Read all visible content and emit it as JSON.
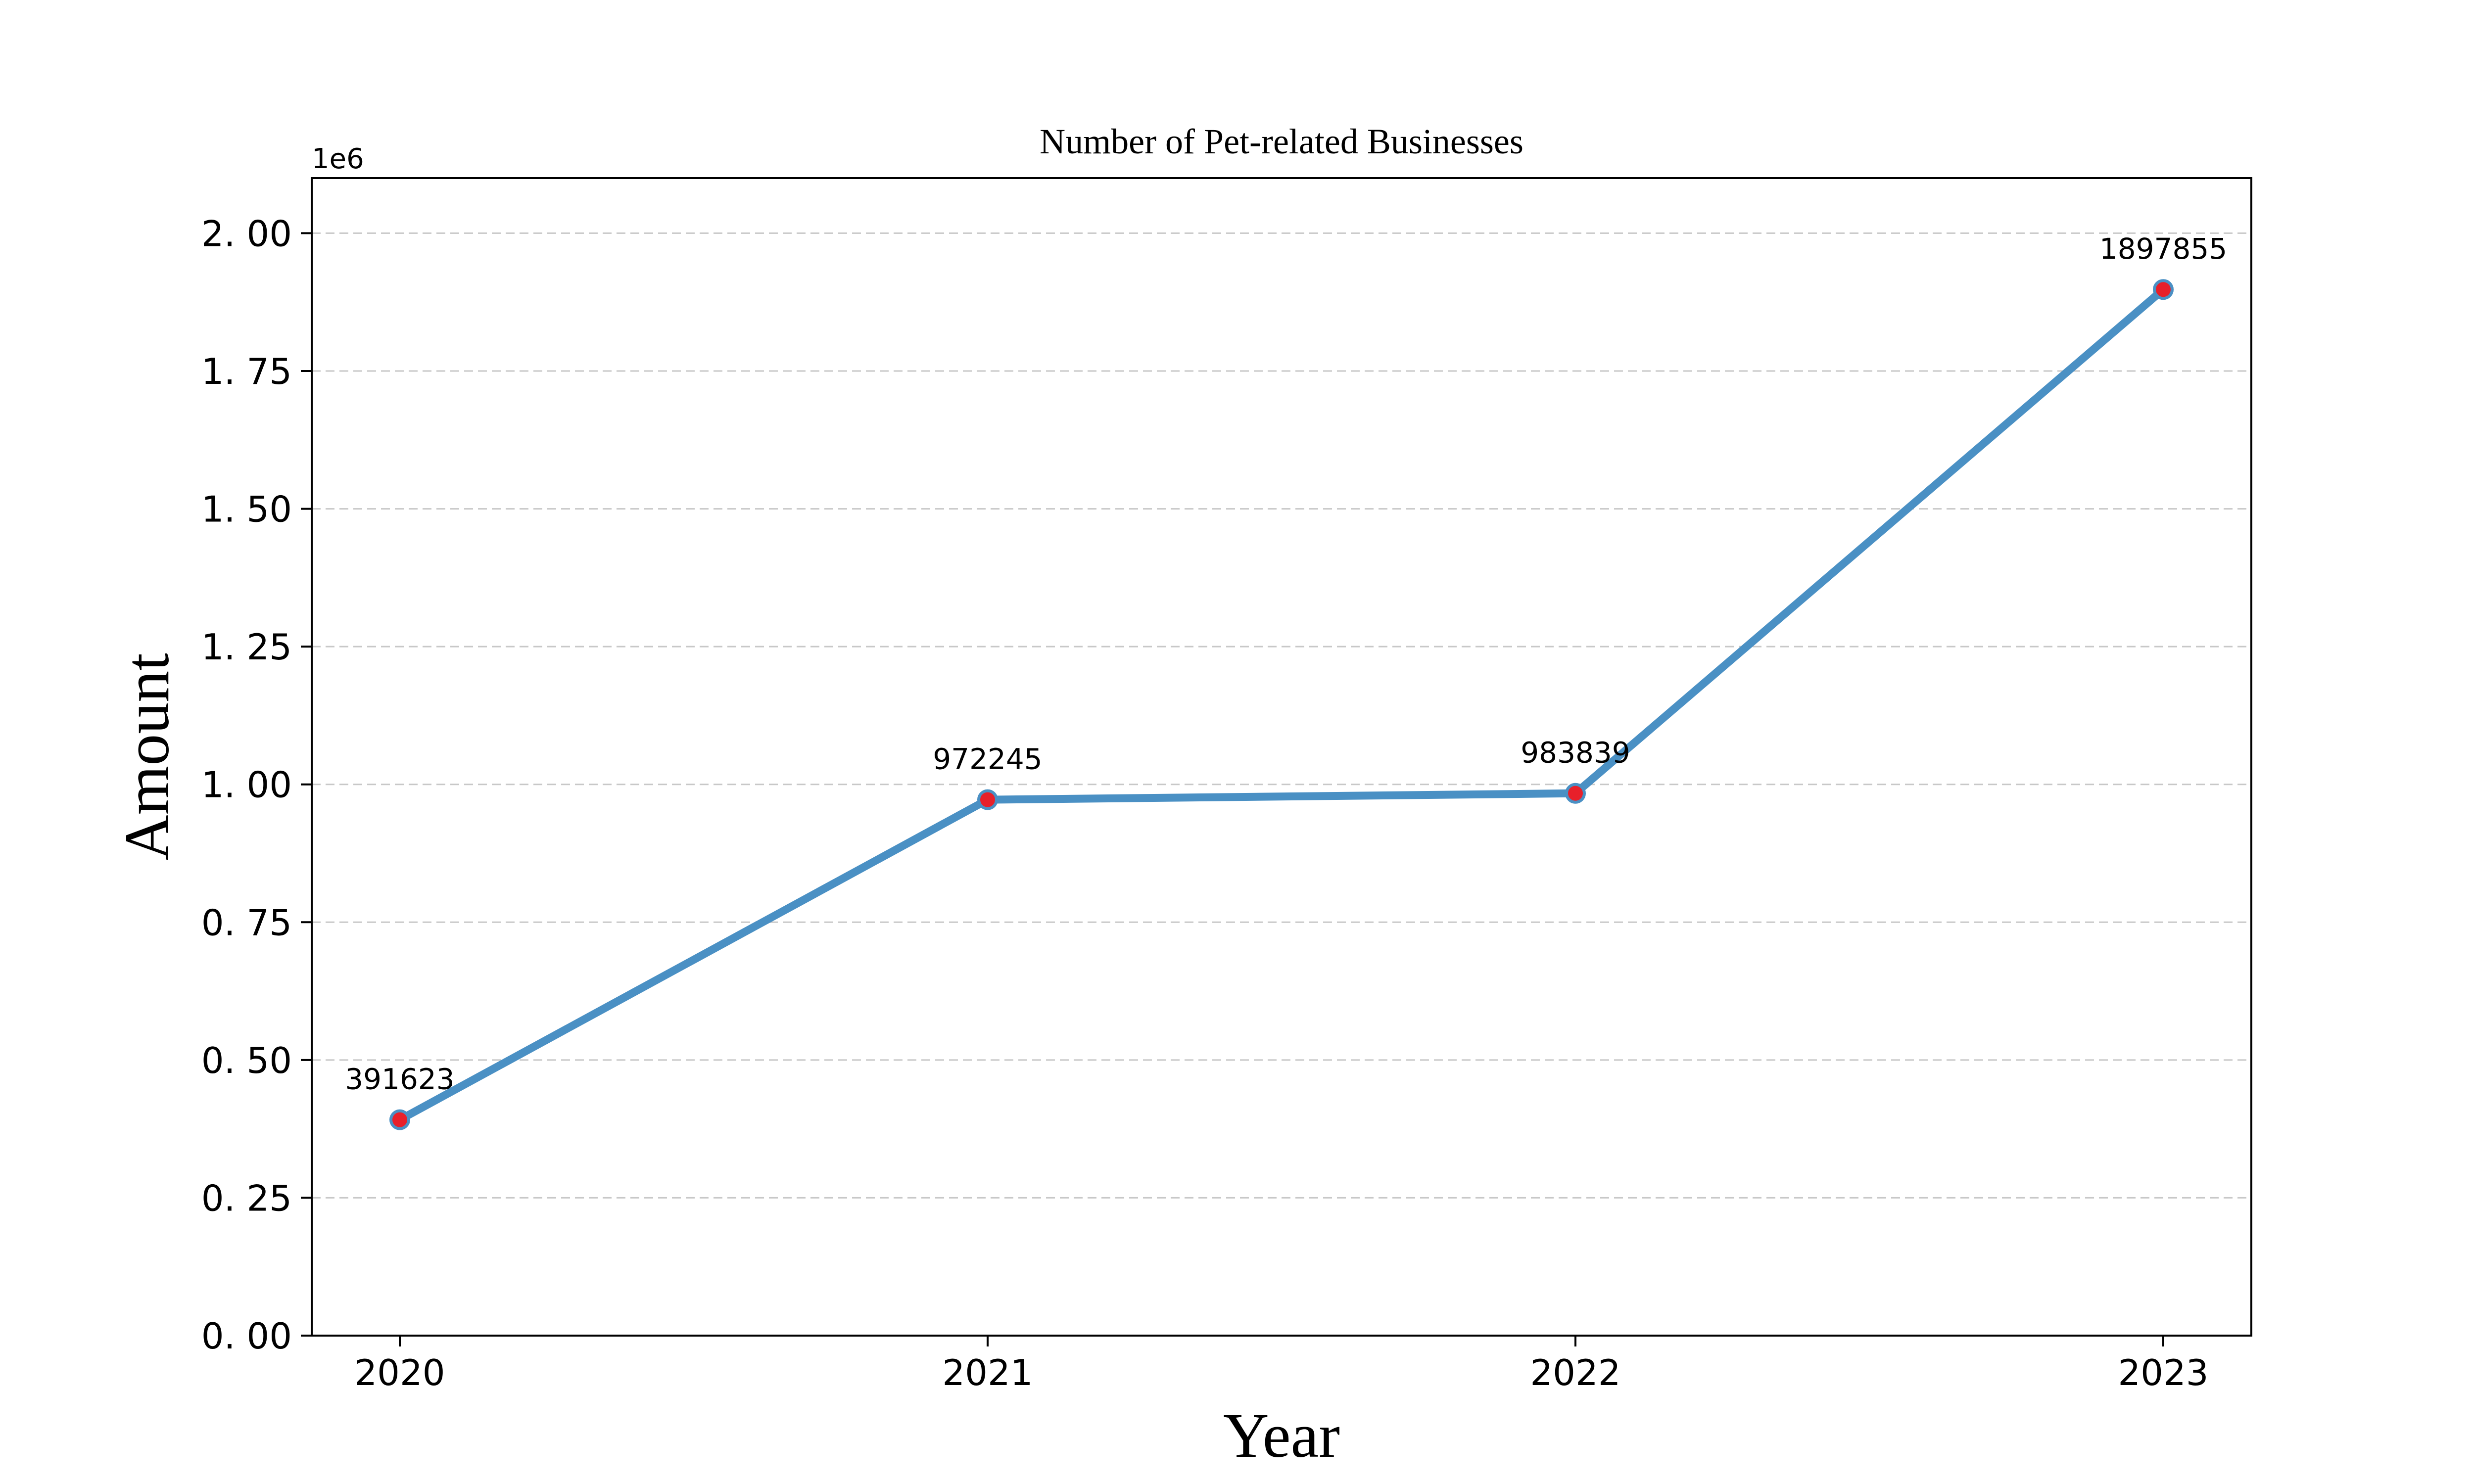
{
  "chart_data": {
    "type": "line",
    "title": "Number of Pet-related Businesses",
    "xlabel": "Year",
    "ylabel": "Amount",
    "y_offset_label": "1e6",
    "categories": [
      "2020",
      "2021",
      "2022",
      "2023"
    ],
    "series": [
      {
        "values": [
          391623,
          972245,
          983839,
          1897855
        ],
        "data_labels": [
          "391623",
          "972245",
          "983839",
          "1897855"
        ],
        "color": "#4a90c4",
        "marker_color": "#e8202a"
      }
    ],
    "yticks": [
      0,
      0.25,
      0.5,
      0.75,
      1.0,
      1.25,
      1.5,
      1.75,
      2.0
    ],
    "ytick_labels": [
      "0. 00",
      "0. 25",
      "0. 50",
      "0. 75",
      "1. 00",
      "1. 25",
      "1. 50",
      "1. 75",
      "2. 00"
    ],
    "y_scale": 1000000,
    "ylim": [
      0,
      2.1
    ],
    "grid": "horizontal dashed",
    "legend": "none"
  }
}
